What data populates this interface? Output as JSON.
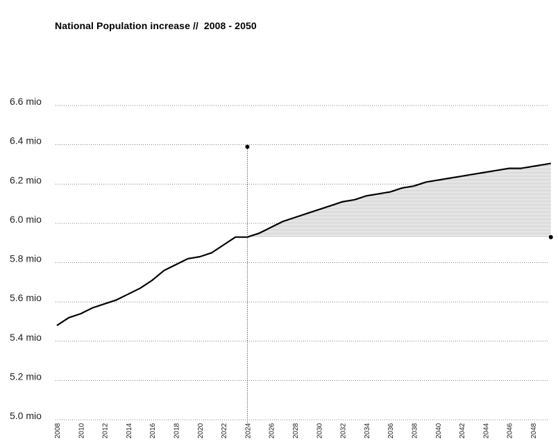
{
  "title": "National Population increase //  2008 - 2050",
  "chart_data": {
    "type": "line",
    "title": "National Population increase //  2008 - 2050",
    "xlabel": "",
    "ylabel": "",
    "y_tick_labels": [
      "5.0 mio",
      "5.2 mio",
      "5.4 mio",
      "5.6 mio",
      "5.8 mio",
      "6.0 mio",
      "6.2 mio",
      "6.4 mio",
      "6.6 mio"
    ],
    "y_ticks": [
      5.0,
      5.2,
      5.4,
      5.6,
      5.8,
      6.0,
      6.2,
      6.4,
      6.6
    ],
    "ylim": [
      5.0,
      6.6
    ],
    "xlim": [
      2008,
      2049.5
    ],
    "x_tick_labels": [
      "2008",
      "2010",
      "2012",
      "2014",
      "2016",
      "2018",
      "2020",
      "2022",
      "2024",
      "2026",
      "2028",
      "2030",
      "2032",
      "2034",
      "2036",
      "2038",
      "2040",
      "2042",
      "2044",
      "2046",
      "2048"
    ],
    "grid": true,
    "marker_year": 2024,
    "series": [
      {
        "x": [
          2008,
          2009,
          2010,
          2011,
          2012,
          2013,
          2014,
          2015,
          2016,
          2017,
          2018,
          2019,
          2020,
          2021,
          2022,
          2023,
          2024,
          2025,
          2026,
          2027,
          2028,
          2029,
          2030,
          2031,
          2032,
          2033,
          2034,
          2035,
          2036,
          2037,
          2038,
          2039,
          2040,
          2041,
          2042,
          2043,
          2044,
          2045,
          2046,
          2047,
          2048,
          2049
        ],
        "values": [
          5.48,
          5.52,
          5.54,
          5.57,
          5.59,
          5.61,
          5.64,
          5.67,
          5.71,
          5.76,
          5.79,
          5.82,
          5.83,
          5.85,
          5.89,
          5.93,
          5.93,
          5.95,
          5.98,
          6.01,
          6.03,
          6.05,
          6.07,
          6.09,
          6.11,
          6.12,
          6.14,
          6.15,
          6.16,
          6.18,
          6.19,
          6.21,
          6.22,
          6.23,
          6.24,
          6.25,
          6.26,
          6.27,
          6.28,
          6.28,
          6.29,
          6.3
        ]
      }
    ]
  }
}
